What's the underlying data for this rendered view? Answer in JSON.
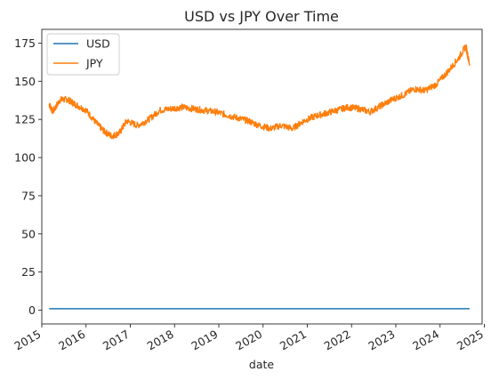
{
  "chart_data": {
    "type": "line",
    "title": "USD vs JPY Over Time",
    "xlabel": "date",
    "ylabel": "",
    "xlim": [
      2015.0,
      2024.95
    ],
    "ylim": [
      -9,
      184
    ],
    "x_ticks": [
      "2015",
      "2016",
      "2017",
      "2018",
      "2019",
      "2020",
      "2021",
      "2022",
      "2023",
      "2024",
      "2025"
    ],
    "y_ticks": [
      "0",
      "25",
      "50",
      "75",
      "100",
      "125",
      "150",
      "175"
    ],
    "legend_position": "top-left",
    "series": [
      {
        "name": "USD",
        "color": "#1f77b4",
        "x": [
          "2015-03",
          "2016-01",
          "2017-01",
          "2018-01",
          "2019-01",
          "2020-01",
          "2021-01",
          "2022-01",
          "2023-01",
          "2024-01",
          "2024-09"
        ],
        "values": [
          1,
          1,
          1,
          1,
          1,
          1,
          1,
          1,
          1,
          1,
          1
        ]
      },
      {
        "name": "JPY",
        "color": "#ff7f0e",
        "x": [
          "2015-03",
          "2015-04",
          "2015-06",
          "2015-08",
          "2015-10",
          "2016-01",
          "2016-04",
          "2016-06",
          "2016-08",
          "2016-10",
          "2016-12",
          "2017-03",
          "2017-06",
          "2017-09",
          "2017-12",
          "2018-03",
          "2018-06",
          "2018-09",
          "2018-12",
          "2019-03",
          "2019-06",
          "2019-09",
          "2019-12",
          "2020-03",
          "2020-06",
          "2020-09",
          "2020-12",
          "2021-03",
          "2021-06",
          "2021-09",
          "2021-12",
          "2022-03",
          "2022-06",
          "2022-09",
          "2022-12",
          "2023-03",
          "2023-06",
          "2023-09",
          "2023-12",
          "2024-03",
          "2024-06",
          "2024-08",
          "2024-09"
        ],
        "values": [
          135,
          130,
          138,
          138,
          135,
          131,
          122,
          117,
          114,
          116,
          124,
          121,
          125,
          131,
          132,
          133,
          132,
          131,
          130,
          128,
          126,
          124,
          121,
          119,
          121,
          119,
          124,
          127,
          129,
          131,
          133,
          132,
          130,
          134,
          138,
          141,
          145,
          144,
          148,
          156,
          165,
          173,
          161
        ]
      }
    ]
  }
}
